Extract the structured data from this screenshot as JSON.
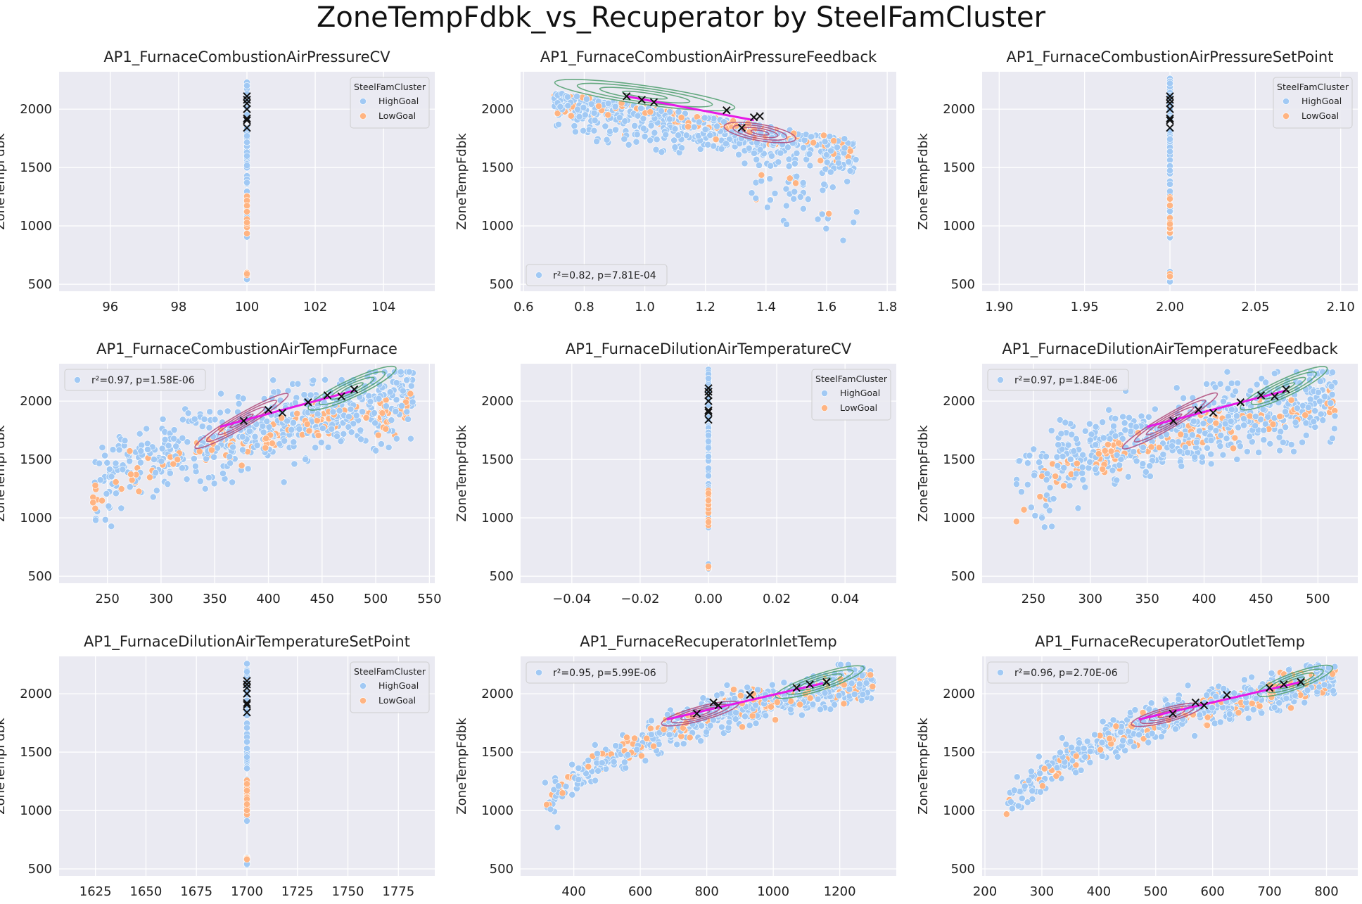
{
  "figure": {
    "title": "ZoneTempFdbk_vs_Recuperator by SteelFamCluster",
    "colors": {
      "HighGoal": "#a1c9f4",
      "LowGoal": "#ffb482",
      "fit": "#e619e6",
      "kdeHigh": "#4c9e6c",
      "kdeLow": "#b04a7a",
      "marker": "#111111",
      "axes_bg": "#eaeaf2",
      "grid": "#ffffff"
    }
  },
  "chart_data": [
    {
      "type": "scatter",
      "title": "AP1_FurnaceCombustionAirPressureCV",
      "ylabel": "ZoneTempFdbk",
      "xlabel": "",
      "xlim": [
        94.5,
        105.5
      ],
      "ylim": [
        440,
        2320
      ],
      "xticks": [
        96,
        98,
        100,
        102,
        104
      ],
      "xtick_labels": [
        "96",
        "98",
        "100",
        "102",
        "104"
      ],
      "yticks": [
        500,
        1000,
        1500,
        2000
      ],
      "mode": "constant",
      "x_const": 100,
      "has_kde": false,
      "legend": {
        "title": "SteelFamCluster",
        "entries": [
          "HighGoal",
          "LowGoal"
        ],
        "loc": "upper right"
      }
    },
    {
      "type": "scatter",
      "title": "AP1_FurnaceCombustionAirPressureFeedback",
      "ylabel": "ZoneTempFdbk",
      "xlabel": "",
      "xlim": [
        0.59,
        1.83
      ],
      "ylim": [
        440,
        2320
      ],
      "xticks": [
        0.6,
        0.8,
        1.0,
        1.2,
        1.4,
        1.6,
        1.8
      ],
      "xtick_labels": [
        "0.6",
        "0.8",
        "1.0",
        "1.2",
        "1.4",
        "1.6",
        "1.8"
      ],
      "yticks": [
        500,
        1000,
        1500,
        2000
      ],
      "mode": "negative",
      "has_kde": true,
      "fit_line": [
        [
          0.94,
          2110
        ],
        [
          1.36,
          1905
        ]
      ],
      "binned_points": [
        [
          0.94,
          2110
        ],
        [
          0.99,
          2080
        ],
        [
          1.03,
          2060
        ],
        [
          1.27,
          1990
        ],
        [
          1.32,
          1840
        ],
        [
          1.36,
          1930
        ],
        [
          1.38,
          1940
        ]
      ],
      "kde_high": {
        "cx": 1.0,
        "cy": 2120,
        "rx": 0.3,
        "ry": 80,
        "angle": 8
      },
      "kde_low": {
        "cx": 1.38,
        "cy": 1800,
        "rx": 0.12,
        "ry": 70,
        "angle": 10
      },
      "legend": {
        "entries": [
          "r²=0.82, p=7.81E-04"
        ],
        "loc": "lower left"
      }
    },
    {
      "type": "scatter",
      "title": "AP1_FurnaceCombustionAirPressureSetPoint",
      "ylabel": "ZoneTempFdbk",
      "xlabel": "",
      "xlim": [
        1.89,
        2.11
      ],
      "ylim": [
        440,
        2320
      ],
      "xticks": [
        1.9,
        1.95,
        2.0,
        2.05,
        2.1
      ],
      "xtick_labels": [
        "1.90",
        "1.95",
        "2.00",
        "2.05",
        "2.10"
      ],
      "yticks": [
        500,
        1000,
        1500,
        2000
      ],
      "mode": "constant",
      "x_const": 2.0,
      "has_kde": false,
      "legend": {
        "title": "SteelFamCluster",
        "entries": [
          "HighGoal",
          "LowGoal"
        ],
        "loc": "upper right"
      }
    },
    {
      "type": "scatter",
      "title": "AP1_FurnaceCombustionAirTempFurnace",
      "ylabel": "ZoneTempFdbk",
      "xlabel": "",
      "xlim": [
        205,
        555
      ],
      "ylim": [
        440,
        2320
      ],
      "xticks": [
        250,
        300,
        350,
        400,
        450,
        500,
        550
      ],
      "xtick_labels": [
        "250",
        "300",
        "350",
        "400",
        "450",
        "500",
        "550"
      ],
      "yticks": [
        500,
        1000,
        1500,
        2000
      ],
      "mode": "positive",
      "has_kde": true,
      "fit_line": [
        [
          355,
          1780
        ],
        [
          480,
          2090
        ]
      ],
      "binned_points": [
        [
          377,
          1830
        ],
        [
          400,
          1925
        ],
        [
          413,
          1900
        ],
        [
          437,
          1990
        ],
        [
          455,
          2050
        ],
        [
          468,
          2040
        ],
        [
          480,
          2100
        ]
      ],
      "kde_high": {
        "cx": 478,
        "cy": 2110,
        "rx": 45,
        "ry": 75,
        "angle": -25
      },
      "kde_low": {
        "cx": 375,
        "cy": 1830,
        "rx": 50,
        "ry": 60,
        "angle": -30
      },
      "legend": {
        "entries": [
          "r²=0.97, p=1.58E-06"
        ],
        "loc": "upper left"
      }
    },
    {
      "type": "scatter",
      "title": "AP1_FurnaceDilutionAirTemperatureCV",
      "ylabel": "ZoneTempFdbk",
      "xlabel": "",
      "xlim": [
        -0.055,
        0.055
      ],
      "ylim": [
        440,
        2320
      ],
      "xticks": [
        -0.04,
        -0.02,
        0.0,
        0.02,
        0.04
      ],
      "xtick_labels": [
        "−0.04",
        "−0.02",
        "0.00",
        "0.02",
        "0.04"
      ],
      "yticks": [
        500,
        1000,
        1500,
        2000
      ],
      "mode": "constant",
      "x_const": 0.0,
      "has_kde": false,
      "legend": {
        "title": "SteelFamCluster",
        "entries": [
          "HighGoal",
          "LowGoal"
        ],
        "loc": "upper right"
      }
    },
    {
      "type": "scatter",
      "title": "AP1_FurnaceDilutionAirTemperatureFeedback",
      "ylabel": "ZoneTempFdbk",
      "xlabel": "",
      "xlim": [
        205,
        535
      ],
      "ylim": [
        440,
        2320
      ],
      "xticks": [
        250,
        300,
        350,
        400,
        450,
        500
      ],
      "xtick_labels": [
        "250",
        "300",
        "350",
        "400",
        "450",
        "500"
      ],
      "yticks": [
        500,
        1000,
        1500,
        2000
      ],
      "mode": "positive",
      "has_kde": true,
      "fit_line": [
        [
          350,
          1780
        ],
        [
          472,
          2090
        ]
      ],
      "binned_points": [
        [
          373,
          1830
        ],
        [
          395,
          1925
        ],
        [
          408,
          1900
        ],
        [
          432,
          1990
        ],
        [
          450,
          2050
        ],
        [
          462,
          2040
        ],
        [
          472,
          2100
        ]
      ],
      "kde_high": {
        "cx": 470,
        "cy": 2110,
        "rx": 42,
        "ry": 75,
        "angle": -25
      },
      "kde_low": {
        "cx": 370,
        "cy": 1830,
        "rx": 48,
        "ry": 60,
        "angle": -30
      },
      "legend": {
        "entries": [
          "r²=0.97, p=1.84E-06"
        ],
        "loc": "upper left"
      }
    },
    {
      "type": "scatter",
      "title": "AP1_FurnaceDilutionAirTemperatureSetPoint",
      "ylabel": "ZoneTempFdbk",
      "xlabel": "",
      "xlim": [
        1607,
        1793
      ],
      "ylim": [
        440,
        2320
      ],
      "xticks": [
        1625,
        1650,
        1675,
        1700,
        1725,
        1750,
        1775
      ],
      "xtick_labels": [
        "1625",
        "1650",
        "1675",
        "1700",
        "1725",
        "1750",
        "1775"
      ],
      "yticks": [
        500,
        1000,
        1500,
        2000
      ],
      "mode": "constant",
      "x_const": 1700,
      "has_kde": false,
      "legend": {
        "title": "SteelFamCluster",
        "entries": [
          "HighGoal",
          "LowGoal"
        ],
        "loc": "upper right"
      }
    },
    {
      "type": "scatter",
      "title": "AP1_FurnaceRecuperatorInletTemp",
      "ylabel": "ZoneTempFdbk",
      "xlabel": "",
      "xlim": [
        240,
        1370
      ],
      "ylim": [
        440,
        2320
      ],
      "xticks": [
        400,
        600,
        800,
        1000,
        1200
      ],
      "xtick_labels": [
        "400",
        "600",
        "800",
        "1000",
        "1200"
      ],
      "yticks": [
        500,
        1000,
        1500,
        2000
      ],
      "mode": "log",
      "has_kde": true,
      "fit_line": [
        [
          680,
          1780
        ],
        [
          1150,
          2090
        ]
      ],
      "binned_points": [
        [
          770,
          1830
        ],
        [
          820,
          1925
        ],
        [
          835,
          1900
        ],
        [
          930,
          1990
        ],
        [
          1070,
          2050
        ],
        [
          1110,
          2080
        ],
        [
          1160,
          2100
        ]
      ],
      "kde_high": {
        "cx": 1140,
        "cy": 2100,
        "rx": 140,
        "ry": 70,
        "angle": -18
      },
      "kde_low": {
        "cx": 780,
        "cy": 1830,
        "rx": 120,
        "ry": 60,
        "angle": -15
      },
      "legend": {
        "entries": [
          "r²=0.95, p=5.99E-06"
        ],
        "loc": "upper left"
      }
    },
    {
      "type": "scatter",
      "title": "AP1_FurnaceRecuperatorOutletTemp",
      "ylabel": "ZoneTempFdbk",
      "xlabel": "",
      "xlim": [
        195,
        855
      ],
      "ylim": [
        440,
        2320
      ],
      "xticks": [
        200,
        300,
        400,
        500,
        600,
        700,
        800
      ],
      "xtick_labels": [
        "200",
        "300",
        "400",
        "500",
        "600",
        "700",
        "800"
      ],
      "yticks": [
        500,
        1000,
        1500,
        2000
      ],
      "mode": "log",
      "has_kde": true,
      "fit_line": [
        [
          470,
          1780
        ],
        [
          755,
          2100
        ]
      ],
      "binned_points": [
        [
          530,
          1830
        ],
        [
          570,
          1925
        ],
        [
          585,
          1900
        ],
        [
          625,
          1990
        ],
        [
          700,
          2050
        ],
        [
          725,
          2080
        ],
        [
          755,
          2100
        ]
      ],
      "kde_high": {
        "cx": 745,
        "cy": 2110,
        "rx": 70,
        "ry": 70,
        "angle": -20
      },
      "kde_low": {
        "cx": 520,
        "cy": 1820,
        "rx": 65,
        "ry": 60,
        "angle": -15
      },
      "legend": {
        "entries": [
          "r²=0.96, p=2.70E-06"
        ],
        "loc": "upper left"
      }
    }
  ]
}
